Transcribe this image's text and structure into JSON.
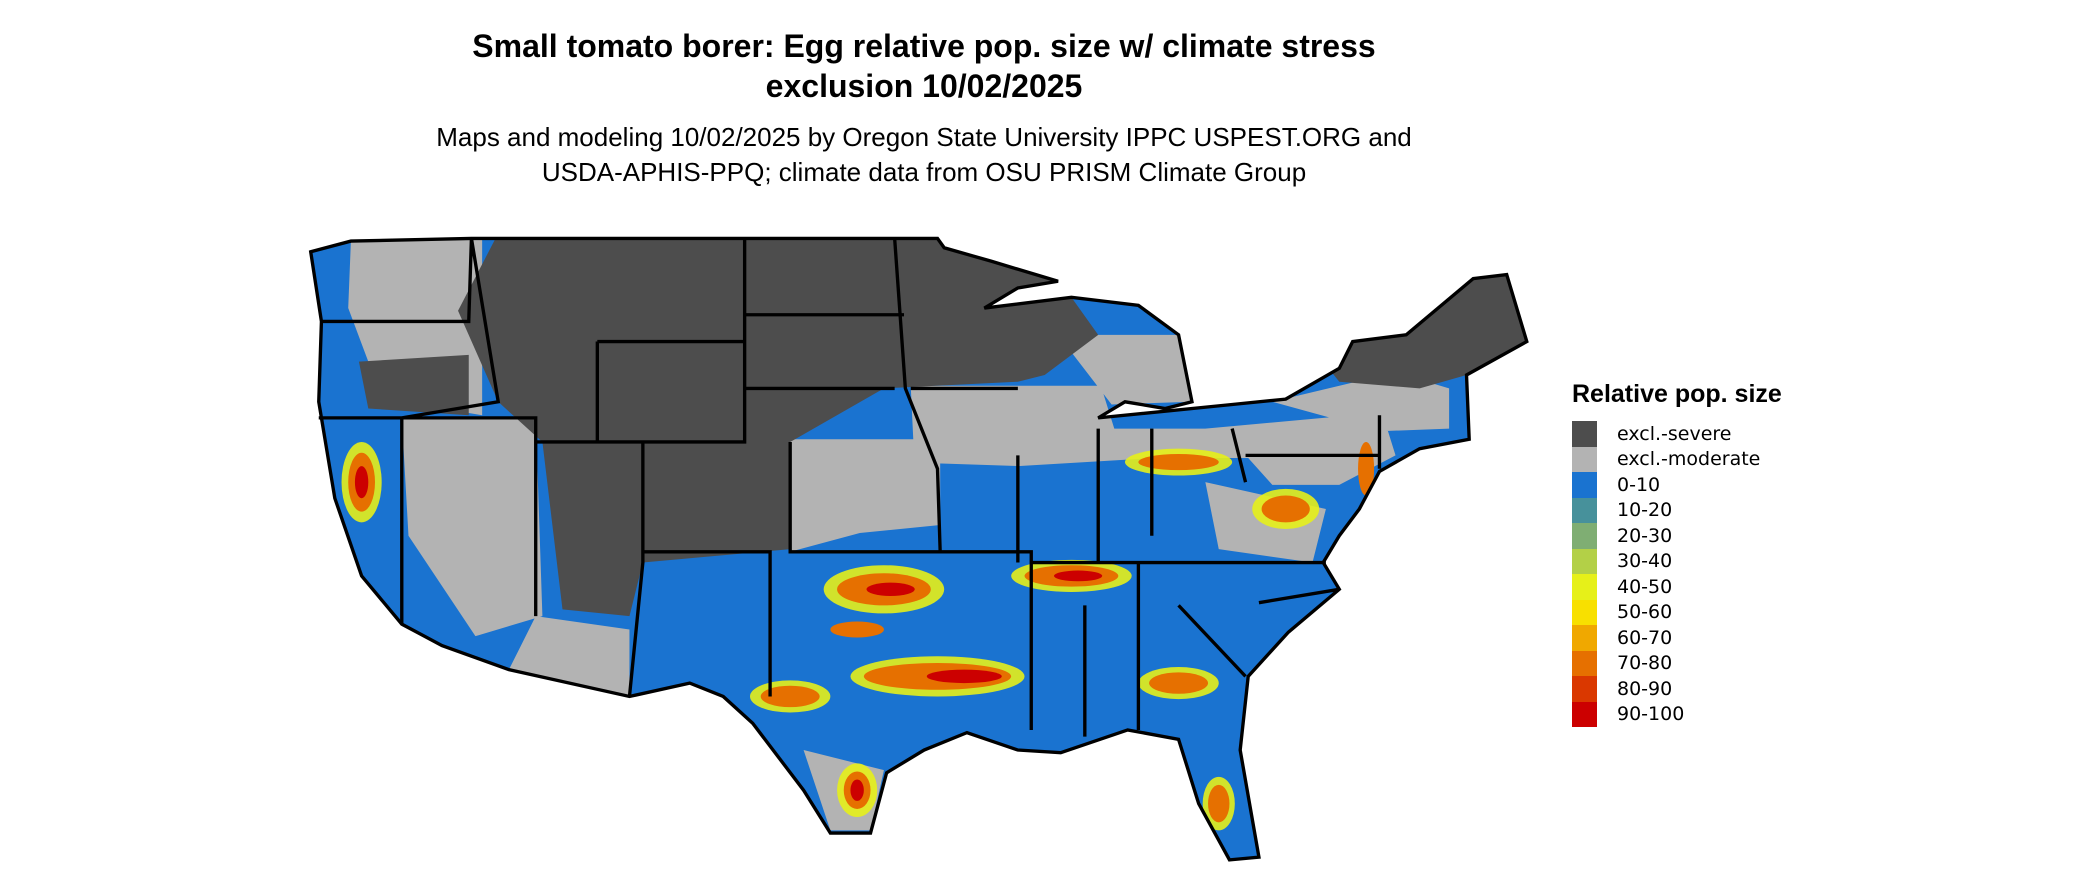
{
  "title_line1": "Small tomato borer: Egg relative pop. size w/ climate stress",
  "title_line2": "exclusion 10/02/2025",
  "subtitle_line1": "Maps and modeling 10/02/2025 by Oregon State University IPPC USPEST.ORG and",
  "subtitle_line2": "USDA-APHIS-PPQ; climate data from OSU PRISM Climate Group",
  "legend": {
    "title": "Relative pop. size",
    "items": [
      {
        "label": "excl.-severe",
        "color": "#4d4d4d"
      },
      {
        "label": "excl.-moderate",
        "color": "#b3b3b3"
      },
      {
        "label": "0-10",
        "color": "#1a73d0"
      },
      {
        "label": "10-20",
        "color": "#47919b"
      },
      {
        "label": "20-30",
        "color": "#7fae73"
      },
      {
        "label": "30-40",
        "color": "#b3d047"
      },
      {
        "label": "40-50",
        "color": "#e6f019"
      },
      {
        "label": "50-60",
        "color": "#f8e000"
      },
      {
        "label": "60-70",
        "color": "#f0a800"
      },
      {
        "label": "70-80",
        "color": "#e67000"
      },
      {
        "label": "80-90",
        "color": "#da3800"
      },
      {
        "label": "90-100",
        "color": "#cc0000"
      }
    ]
  }
}
